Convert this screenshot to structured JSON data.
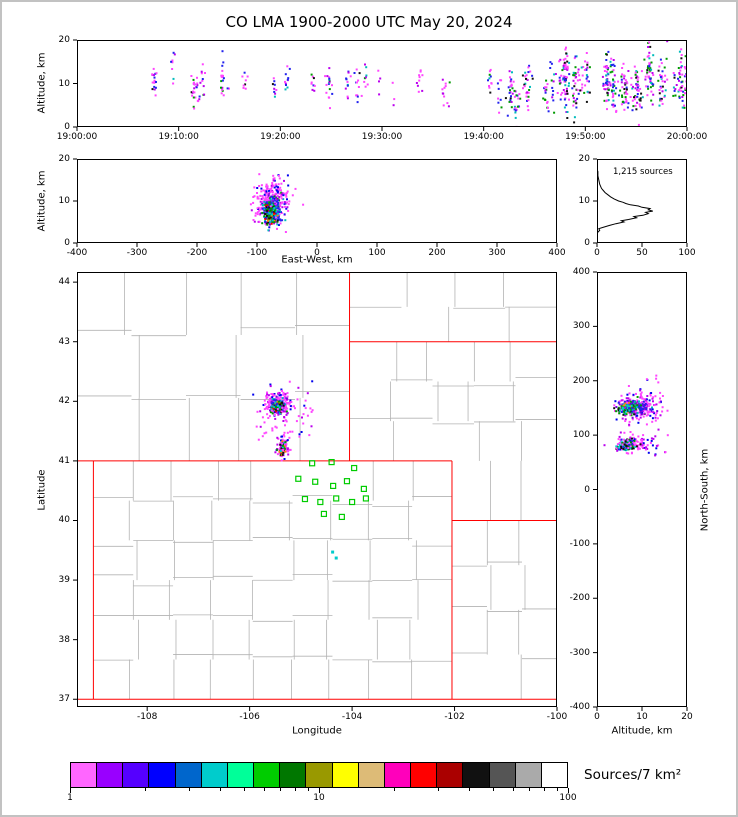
{
  "title": "CO LMA 1900-2000 UTC May 20, 2024",
  "panel_time_height": {
    "ylabel": "Altitude, km",
    "xticks": [
      {
        "v": 0,
        "label": "19:00:00"
      },
      {
        "v": 600,
        "label": "19:10:00"
      },
      {
        "v": 1200,
        "label": "19:20:00"
      },
      {
        "v": 1800,
        "label": "19:30:00"
      },
      {
        "v": 2400,
        "label": "19:40:00"
      },
      {
        "v": 3000,
        "label": "19:50:00"
      },
      {
        "v": 3600,
        "label": "20:00:00"
      }
    ],
    "yticks": [
      {
        "v": 0,
        "label": "0"
      },
      {
        "v": 10,
        "label": "10"
      },
      {
        "v": 20,
        "label": "20"
      }
    ]
  },
  "panel_ew_height": {
    "xlabel": "East-West, km",
    "ylabel": "Altitude, km",
    "xticks": [
      {
        "v": -400,
        "label": "-400"
      },
      {
        "v": -300,
        "label": "-300"
      },
      {
        "v": -200,
        "label": "-200"
      },
      {
        "v": -100,
        "label": "-100"
      },
      {
        "v": 0,
        "label": "0"
      },
      {
        "v": 100,
        "label": "100"
      },
      {
        "v": 200,
        "label": "200"
      },
      {
        "v": 300,
        "label": "300"
      },
      {
        "v": 400,
        "label": "400"
      }
    ],
    "yticks": [
      {
        "v": 0,
        "label": "0"
      },
      {
        "v": 10,
        "label": "10"
      },
      {
        "v": 20,
        "label": "20"
      }
    ]
  },
  "panel_histogram": {
    "annotation": "1,215 sources",
    "xticks": [
      {
        "v": 0,
        "label": "0"
      },
      {
        "v": 50,
        "label": "50"
      },
      {
        "v": 100,
        "label": "100"
      }
    ],
    "yticks": [
      {
        "v": 0,
        "label": "0"
      },
      {
        "v": 10,
        "label": "10"
      },
      {
        "v": 20,
        "label": "20"
      }
    ]
  },
  "panel_map": {
    "xlabel": "Longitude",
    "ylabel": "Latitude",
    "xticks": [
      {
        "v": -108,
        "label": "-108"
      },
      {
        "v": -106,
        "label": "-106"
      },
      {
        "v": -104,
        "label": "-104"
      },
      {
        "v": -102,
        "label": "-102"
      },
      {
        "v": -100,
        "label": "-100"
      }
    ],
    "yticks": [
      {
        "v": 37,
        "label": "37"
      },
      {
        "v": 38,
        "label": "38"
      },
      {
        "v": 39,
        "label": "39"
      },
      {
        "v": 40,
        "label": "40"
      },
      {
        "v": 41,
        "label": "41"
      },
      {
        "v": 42,
        "label": "42"
      },
      {
        "v": 43,
        "label": "43"
      },
      {
        "v": 44,
        "label": "44"
      }
    ]
  },
  "panel_ns_height": {
    "xlabel": "Altitude, km",
    "ylabel": "North-South, km",
    "xticks": [
      {
        "v": 0,
        "label": "0"
      },
      {
        "v": 10,
        "label": "10"
      },
      {
        "v": 20,
        "label": "20"
      }
    ],
    "yticks": [
      {
        "v": -400,
        "label": "-400"
      },
      {
        "v": -300,
        "label": "-300"
      },
      {
        "v": -200,
        "label": "-200"
      },
      {
        "v": -100,
        "label": "-100"
      },
      {
        "v": 0,
        "label": "0"
      },
      {
        "v": 100,
        "label": "100"
      },
      {
        "v": 200,
        "label": "200"
      },
      {
        "v": 300,
        "label": "300"
      },
      {
        "v": 400,
        "label": "400"
      }
    ]
  },
  "colorbar": {
    "label": "Sources/7 km²",
    "ticks": [
      {
        "t": 0,
        "label": "1"
      },
      {
        "t": 0.5,
        "label": "10"
      },
      {
        "t": 1,
        "label": "100"
      }
    ],
    "minor_ticks": [
      2,
      3,
      4,
      5,
      6,
      7,
      8,
      9,
      20,
      30,
      40,
      50,
      60,
      70,
      80,
      90
    ],
    "colors": [
      "#ff66ff",
      "#9900ff",
      "#5500ff",
      "#0000ff",
      "#0066cc",
      "#00cccc",
      "#00ff99",
      "#00cc00",
      "#007700",
      "#999900",
      "#ffff00",
      "#ddbb77",
      "#ff00bb",
      "#ff0000",
      "#aa0000",
      "#111111",
      "#555555",
      "#aaaaaa",
      "#ffffff"
    ]
  },
  "colors": {
    "state_border": "#ff0000",
    "county_line": "#b3b3b3",
    "station": "#00cc00",
    "frame": "#000000"
  },
  "palettes": {
    "fringe": [
      [
        "#ff44ff",
        0.62
      ],
      [
        "#bb00ee",
        0.22
      ],
      [
        "#0000ee",
        0.16
      ]
    ],
    "mid": [
      [
        "#2222ee",
        0.4
      ],
      [
        "#7700dd",
        0.25
      ],
      [
        "#00bbbb",
        0.18
      ],
      [
        "#00a000",
        0.17
      ]
    ],
    "core": [
      [
        "#009900",
        0.3
      ],
      [
        "#00cccc",
        0.22
      ],
      [
        "#111111",
        0.22
      ],
      [
        "#2222ee",
        0.12
      ],
      [
        "#ff8800",
        0.08
      ],
      [
        "#ee0000",
        0.06
      ]
    ],
    "coreB": [
      [
        "#ff8800",
        0.24
      ],
      [
        "#111111",
        0.22
      ],
      [
        "#009900",
        0.16
      ],
      [
        "#00cccc",
        0.12
      ],
      [
        "#ff44ff",
        0.26
      ]
    ],
    "coreB2": [
      [
        "#00cccc",
        0.3
      ],
      [
        "#009900",
        0.24
      ],
      [
        "#111111",
        0.18
      ],
      [
        "#2222ee",
        0.14
      ],
      [
        "#ff44ff",
        0.14
      ]
    ],
    "sparse": [
      [
        "#ff44ff",
        0.52
      ],
      [
        "#bb00ee",
        0.16
      ],
      [
        "#2222ee",
        0.16
      ],
      [
        "#009900",
        0.06
      ],
      [
        "#00bbbb",
        0.05
      ],
      [
        "#111111",
        0.05
      ]
    ],
    "dense": [
      [
        "#ff44ff",
        0.38
      ],
      [
        "#bb00ee",
        0.14
      ],
      [
        "#2222ee",
        0.18
      ],
      [
        "#00bbbb",
        0.08
      ],
      [
        "#009900",
        0.13
      ],
      [
        "#111111",
        0.09
      ]
    ]
  },
  "chart_data": [
    {
      "id": "time_height",
      "type": "scatter",
      "x_units": "seconds after 19:00:00 UTC",
      "xlim": [
        0,
        3600
      ],
      "ylim": [
        0,
        20
      ],
      "generators": [
        {
          "kind": "stripes",
          "seed": 101,
          "count": 34,
          "tmin": 430,
          "tmax": 2780,
          "bias": 1.1,
          "nmin": 2,
          "nmax": 12,
          "altc": 9.7,
          "altcsd": 1.4,
          "spread": 2.0,
          "jitter": 8,
          "palette": "sparse"
        },
        {
          "kind": "stripes",
          "seed": 102,
          "count": 46,
          "tmin": 2550,
          "tmax": 3595,
          "bias": 0.85,
          "nmin": 4,
          "nmax": 20,
          "altc": 10.2,
          "altcsd": 1.9,
          "spread": 2.7,
          "jitter": 9,
          "palette": "dense"
        }
      ]
    },
    {
      "id": "ew_height",
      "type": "scatter",
      "xlim": [
        -400,
        400
      ],
      "ylim": [
        0,
        20
      ],
      "generators": [
        {
          "kind": "gauss",
          "seed": 201,
          "n": 240,
          "cx": -74,
          "cy": 9.2,
          "sx": 15,
          "sy": 2.6,
          "palette": "fringe"
        },
        {
          "kind": "gauss",
          "seed": 202,
          "n": 170,
          "cx": -76,
          "cy": 7.9,
          "sx": 8,
          "sy": 1.7,
          "palette": "mid"
        },
        {
          "kind": "gauss",
          "seed": 203,
          "n": 130,
          "cx": -76,
          "cy": 6.7,
          "sx": 5.5,
          "sy": 1.1,
          "palette": "core"
        },
        {
          "kind": "gauss",
          "seed": 204,
          "n": 26,
          "cx": -70,
          "cy": 13.8,
          "sx": 11,
          "sy": 1.7,
          "palette": "fringe"
        },
        {
          "kind": "uniform",
          "seed": 205,
          "n": 8,
          "x0": -135,
          "x1": -25,
          "y0": 5,
          "y1": 14,
          "palette": "fringe"
        }
      ]
    },
    {
      "id": "histogram",
      "type": "line",
      "total_sources": 1215,
      "xlim": [
        0,
        100
      ],
      "ylim": [
        0,
        20
      ],
      "profile_alt_count": [
        [
          2.2,
          0
        ],
        [
          2.6,
          1
        ],
        [
          3.0,
          3
        ],
        [
          3.4,
          2
        ],
        [
          3.8,
          8
        ],
        [
          4.2,
          14
        ],
        [
          4.6,
          21
        ],
        [
          5.0,
          30
        ],
        [
          5.3,
          27
        ],
        [
          5.6,
          35
        ],
        [
          6.0,
          44
        ],
        [
          6.3,
          41
        ],
        [
          6.6,
          51
        ],
        [
          7.0,
          57
        ],
        [
          7.3,
          54
        ],
        [
          7.6,
          62
        ],
        [
          7.9,
          57
        ],
        [
          8.2,
          59
        ],
        [
          8.5,
          50
        ],
        [
          8.8,
          46
        ],
        [
          9.1,
          37
        ],
        [
          9.4,
          32
        ],
        [
          9.7,
          29
        ],
        [
          10.0,
          24
        ],
        [
          10.5,
          19
        ],
        [
          11.0,
          15
        ],
        [
          11.5,
          12
        ],
        [
          12.0,
          9
        ],
        [
          12.5,
          7
        ],
        [
          13.0,
          5
        ],
        [
          13.5,
          4
        ],
        [
          14.0,
          3
        ],
        [
          15.0,
          2
        ],
        [
          16.0,
          1
        ],
        [
          17.0,
          1
        ],
        [
          17.6,
          0
        ]
      ]
    },
    {
      "id": "map",
      "type": "scatter",
      "xlim": [
        -109.37,
        -100
      ],
      "ylim": [
        36.87,
        44.17
      ],
      "generators": [
        {
          "kind": "gauss",
          "seed": 301,
          "n": 210,
          "cx": -105.43,
          "cy": 41.95,
          "sx": 0.13,
          "sy": 0.1,
          "palette": "fringe"
        },
        {
          "kind": "gauss",
          "seed": 302,
          "n": 120,
          "cx": -105.45,
          "cy": 41.93,
          "sx": 0.07,
          "sy": 0.055,
          "palette": "mid"
        },
        {
          "kind": "gauss",
          "seed": 303,
          "n": 90,
          "cx": -105.46,
          "cy": 41.92,
          "sx": 0.042,
          "sy": 0.035,
          "palette": "core"
        },
        {
          "kind": "gauss",
          "seed": 304,
          "n": 80,
          "cx": -105.35,
          "cy": 41.24,
          "sx": 0.055,
          "sy": 0.085,
          "palette": "fringe"
        },
        {
          "kind": "gauss",
          "seed": 305,
          "n": 55,
          "cx": -105.36,
          "cy": 41.19,
          "sx": 0.035,
          "sy": 0.05,
          "palette": "coreB"
        },
        {
          "kind": "uniform",
          "seed": 306,
          "n": 60,
          "x0": -105.95,
          "x1": -104.75,
          "y0": 41.35,
          "y1": 42.4,
          "palette": "fringe"
        },
        {
          "kind": "points",
          "pts": [
            [
              -104.38,
              39.47
            ],
            [
              -104.31,
              39.37
            ]
          ],
          "color": "#00cccc",
          "size": 3
        }
      ],
      "stations_lonlat": [
        [
          -104.78,
          40.96
        ],
        [
          -104.4,
          40.98
        ],
        [
          -103.96,
          40.88
        ],
        [
          -105.05,
          40.7
        ],
        [
          -104.72,
          40.65
        ],
        [
          -104.37,
          40.58
        ],
        [
          -104.1,
          40.66
        ],
        [
          -103.77,
          40.53
        ],
        [
          -104.92,
          40.36
        ],
        [
          -104.62,
          40.31
        ],
        [
          -104.31,
          40.37
        ],
        [
          -104.0,
          40.31
        ],
        [
          -103.73,
          40.37
        ],
        [
          -104.55,
          40.11
        ],
        [
          -104.2,
          40.06
        ]
      ],
      "state_borders": [
        [
          -109.37,
          41,
          -102.05,
          41
        ],
        [
          -109.05,
          37,
          -109.05,
          41
        ],
        [
          -109.37,
          37,
          -100,
          37
        ],
        [
          -102.05,
          37,
          -102.05,
          41
        ],
        [
          -102.05,
          40,
          -100,
          40
        ],
        [
          -104.05,
          41,
          -104.05,
          44.17
        ],
        [
          -104.05,
          43,
          -100,
          43
        ]
      ],
      "county_grid_regions": [
        {
          "x0": -109.05,
          "x1": -102.05,
          "y0": 37,
          "y1": 41,
          "nx": 9,
          "ny": 6,
          "seed": 501
        },
        {
          "x0": -109.37,
          "x1": -104.05,
          "y0": 41,
          "y1": 44.17,
          "nx": 5,
          "ny": 3,
          "seed": 502
        },
        {
          "x0": -104.05,
          "x1": -100,
          "y0": 41,
          "y1": 43,
          "nx": 5,
          "ny": 3,
          "seed": 503
        },
        {
          "x0": -102.05,
          "x1": -100,
          "y0": 40,
          "y1": 41,
          "nx": 3,
          "ny": 1,
          "seed": 504
        },
        {
          "x0": -102.05,
          "x1": -100,
          "y0": 37,
          "y1": 40,
          "nx": 3,
          "ny": 4,
          "seed": 505
        },
        {
          "x0": -104.05,
          "x1": -100,
          "y0": 43,
          "y1": 44.17,
          "nx": 4,
          "ny": 2,
          "seed": 506
        }
      ]
    },
    {
      "id": "ns_height",
      "type": "scatter",
      "xlim": [
        0,
        20
      ],
      "ylim": [
        -400,
        400
      ],
      "generators": [
        {
          "kind": "gauss",
          "seed": 401,
          "n": 210,
          "cx": 9.2,
          "cy": 152,
          "sx": 2.6,
          "sy": 11,
          "palette": "fringe"
        },
        {
          "kind": "gauss",
          "seed": 402,
          "n": 130,
          "cx": 7.9,
          "cy": 151,
          "sx": 1.7,
          "sy": 7,
          "palette": "mid"
        },
        {
          "kind": "gauss",
          "seed": 403,
          "n": 95,
          "cx": 6.7,
          "cy": 150,
          "sx": 1.1,
          "sy": 4.5,
          "palette": "core"
        },
        {
          "kind": "gauss",
          "seed": 404,
          "n": 90,
          "cx": 8.0,
          "cy": 84,
          "sx": 2.2,
          "sy": 7,
          "palette": "fringe"
        },
        {
          "kind": "gauss",
          "seed": 405,
          "n": 80,
          "cx": 6.4,
          "cy": 82,
          "sx": 1.2,
          "sy": 5,
          "palette": "coreB2"
        },
        {
          "kind": "uniform",
          "seed": 406,
          "n": 40,
          "x0": 3,
          "x1": 16,
          "y0": 55,
          "y1": 215,
          "palette": "fringe"
        }
      ]
    }
  ]
}
